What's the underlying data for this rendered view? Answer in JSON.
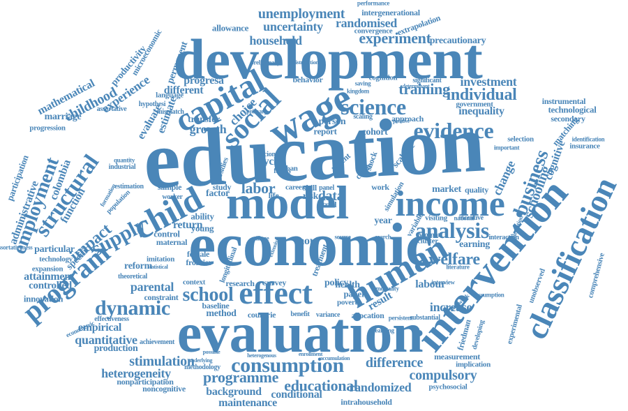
{
  "cloud": {
    "text_color": "#4a86b8",
    "background_color": "#ffffff",
    "words": [
      "education",
      "economic",
      "development",
      "evaluation",
      "model",
      "intervention",
      "human",
      "income",
      "classification",
      "wage",
      "capital",
      "child",
      "effect",
      "social",
      "program",
      "science",
      "evidence",
      "analysis",
      "dynamic",
      "supply",
      "consumption",
      "structural",
      "employment",
      "experiment",
      "school",
      "business",
      "training",
      "individual",
      "educational",
      "programme",
      "unemployment",
      "uncertainty",
      "randomised",
      "household",
      "investment",
      "welfare",
      "impact",
      "labor",
      "data",
      "difference",
      "stimulation",
      "compulsory",
      "heterogeneity",
      "maintenance",
      "conditional",
      "randomized",
      "background",
      "quantitative",
      "empirical",
      "production",
      "attainment",
      "controlled",
      "innovation",
      "childhood",
      "experience",
      "productivity",
      "microeconomic",
      "mathematical",
      "evaluate",
      "estimate",
      "permanent",
      "different",
      "progresa",
      "growth",
      "choice",
      "transfer",
      "inequality",
      "government",
      "schooling",
      "change",
      "cognitive",
      "matching",
      "technological",
      "secondary",
      "instrumental",
      "insurance",
      "selection",
      "market",
      "quality",
      "earning",
      "comprehensive",
      "unobserved",
      "experimental",
      "friedman",
      "labour",
      "increase",
      "result",
      "parental",
      "constraint",
      "method",
      "baseline",
      "countrie",
      "benefit",
      "allocation",
      "health",
      "paper",
      "poverty",
      "policy",
      "survey",
      "research",
      "context",
      "frontier",
      "female",
      "imitation",
      "reform",
      "specific",
      "particular",
      "technology",
      "expansion",
      "theoretical",
      "marriage",
      "progression",
      "colombia",
      "function",
      "administrative",
      "participation",
      "assortative",
      "hypothesi",
      "mismatch",
      "language",
      "factor",
      "young",
      "control",
      "ability",
      "return",
      "study",
      "life",
      "risk",
      "trial",
      "year",
      "more",
      "cycle",
      "person",
      "report",
      "cohort",
      "scalable",
      "parent",
      "crime",
      "shock",
      "approach",
      "scaling",
      "cognition",
      "behavior",
      "significant",
      "precautionary",
      "extrapolation",
      "convergence",
      "intergenerational",
      "allowance",
      "performance",
      "noncognitive",
      "nonparticipation",
      "methodology",
      "psychosocial",
      "intrahousehold",
      "measurement",
      "implication",
      "achievement",
      "effectiveness",
      "econometric",
      "industrial",
      "quantity",
      "sample",
      "estimation",
      "population",
      "formation",
      "assortativeness",
      "maternal",
      "urban",
      "family",
      "accion",
      "visiting",
      "incentive",
      "woman",
      "cluster",
      "interaction",
      "work",
      "career",
      "skill",
      "panel",
      "simulation",
      "variable",
      "national",
      "alleviation",
      "identification",
      "important",
      "framework",
      "assumption",
      "interview",
      "literature",
      "statistical",
      "heterogenous",
      "enrollment",
      "accumulation",
      "saving",
      "kingdom",
      "primary",
      "preliminary",
      "distribution",
      "subsidies",
      "longitudinal",
      "treatment",
      "variance",
      "village",
      "extensive",
      "persistent",
      "substantial",
      "developing",
      "source",
      "search",
      "worker",
      "possible",
      "underlying",
      "determinant",
      "positive",
      "mortality",
      "learning"
    ]
  }
}
